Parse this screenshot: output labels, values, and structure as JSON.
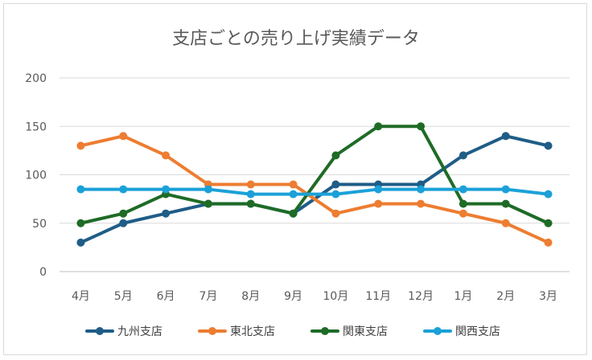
{
  "chart_data": {
    "type": "line",
    "title": "支店ごとの売り上げ実績データ",
    "xlabel": "",
    "ylabel": "",
    "categories": [
      "4月",
      "5月",
      "6月",
      "7月",
      "8月",
      "9月",
      "10月",
      "11月",
      "12月",
      "1月",
      "2月",
      "3月"
    ],
    "ylim": [
      0,
      200
    ],
    "yticks": [
      0,
      50,
      100,
      150,
      200
    ],
    "grid": true,
    "legend_position": "bottom",
    "series": [
      {
        "name": "九州支店",
        "color": "#1f5d87",
        "values": [
          30,
          50,
          60,
          70,
          70,
          60,
          90,
          90,
          90,
          120,
          140,
          130
        ]
      },
      {
        "name": "東北支店",
        "color": "#ed7d31",
        "values": [
          130,
          140,
          120,
          90,
          90,
          90,
          60,
          70,
          70,
          60,
          50,
          30
        ]
      },
      {
        "name": "関東支店",
        "color": "#1e6b26",
        "values": [
          50,
          60,
          80,
          70,
          70,
          60,
          120,
          150,
          150,
          70,
          70,
          50
        ]
      },
      {
        "name": "関西支店",
        "color": "#1ba1d8",
        "values": [
          85,
          85,
          85,
          85,
          80,
          80,
          80,
          85,
          85,
          85,
          85,
          80
        ]
      }
    ]
  }
}
